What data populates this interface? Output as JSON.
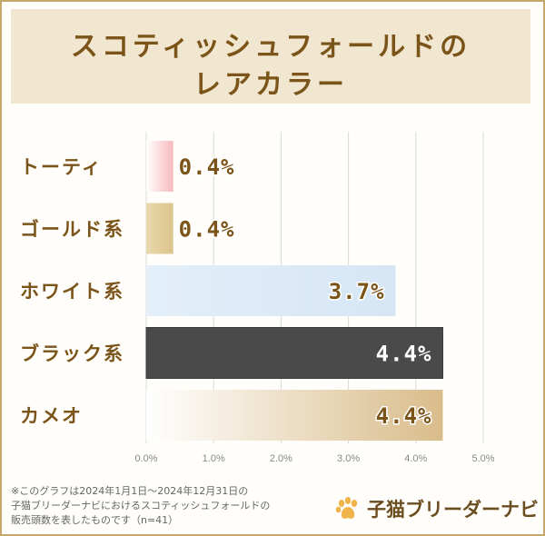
{
  "title": {
    "line1": "スコティッシュフォールドの",
    "line2": "レアカラー"
  },
  "chart_data": {
    "type": "bar",
    "orientation": "horizontal",
    "categories": [
      "トーティ",
      "ゴールド系",
      "ホワイト系",
      "ブラック系",
      "カメオ"
    ],
    "values": [
      0.4,
      0.4,
      3.7,
      4.4,
      4.4
    ],
    "value_labels": [
      "0.4%",
      "0.4%",
      "3.7%",
      "4.4%",
      "4.4%"
    ],
    "xlim": [
      0,
      5
    ],
    "x_ticks": [
      "0.0%",
      "1.0%",
      "2.0%",
      "3.0%",
      "4.0%",
      "5.0%"
    ],
    "grid": true,
    "bar_colors": [
      "#fbd2d2",
      "#e6d3a3",
      "#dbe8f5",
      "#4b4b4b",
      "#eee0c6"
    ],
    "label_colors": [
      "#7a5418",
      "#7a5418",
      "#7a5418",
      "#ffffff",
      "#7a5418"
    ]
  },
  "footnote": {
    "line1": "※このグラフは2024年1月1日〜2024年12月31日の",
    "line2": "子猫ブリーダーナビにおけるスコティッシュフォールドの",
    "line3": "販売頭数を表したものです（n=41）"
  },
  "brand": {
    "name": "子猫ブリーダーナビ",
    "icon": "paw-icon",
    "color": "#f0b44a"
  }
}
